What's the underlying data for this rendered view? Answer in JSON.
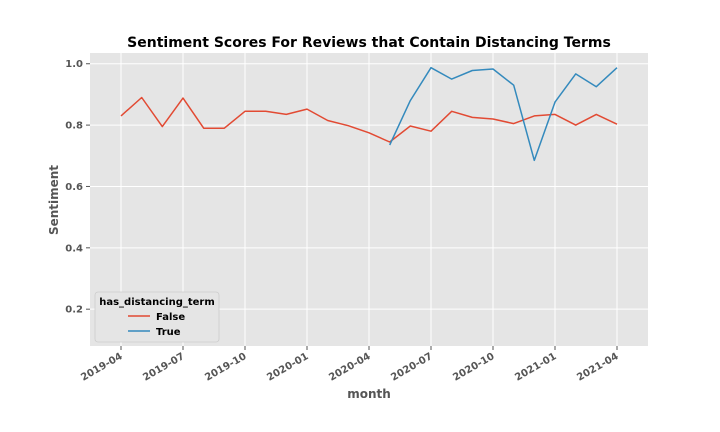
{
  "chart_data": {
    "type": "line",
    "title": "Sentiment Scores For Reviews that Contain Distancing Terms",
    "xlabel": "month",
    "ylabel": "Sentiment",
    "xlim": [
      "2019-04",
      "2021-04"
    ],
    "ylim": [
      0.08,
      1.035
    ],
    "x_ticks": [
      "2019-04",
      "2019-07",
      "2019-10",
      "2020-01",
      "2020-04",
      "2020-07",
      "2020-10",
      "2021-01",
      "2021-04"
    ],
    "y_ticks": [
      0.2,
      0.4,
      0.6,
      0.8,
      1.0
    ],
    "grid": true,
    "legend": {
      "title": "has_distancing_term",
      "placement": "lower-left"
    },
    "series": [
      {
        "name": "False",
        "color": "#E24A33",
        "x": [
          "2019-04",
          "2019-05",
          "2019-06",
          "2019-07",
          "2019-08",
          "2019-09",
          "2019-10",
          "2019-11",
          "2019-12",
          "2020-01",
          "2020-02",
          "2020-03",
          "2020-04",
          "2020-05",
          "2020-06",
          "2020-07",
          "2020-08",
          "2020-09",
          "2020-10",
          "2020-11",
          "2020-12",
          "2021-01",
          "2021-02",
          "2021-03",
          "2021-04"
        ],
        "values": [
          0.83,
          0.89,
          0.795,
          0.888,
          0.79,
          0.79,
          0.845,
          0.845,
          0.835,
          0.852,
          0.815,
          0.798,
          0.775,
          0.745,
          0.797,
          0.78,
          0.845,
          0.825,
          0.82,
          0.805,
          0.83,
          0.835,
          0.8,
          0.835,
          0.803
        ]
      },
      {
        "name": "True",
        "color": "#348ABD",
        "x": [
          "2020-05",
          "2020-06",
          "2020-07",
          "2020-08",
          "2020-09",
          "2020-10",
          "2020-11",
          "2020-12",
          "2021-01",
          "2021-02",
          "2021-03",
          "2021-04"
        ],
        "values": [
          0.735,
          0.88,
          0.987,
          0.95,
          0.978,
          0.983,
          0.93,
          0.685,
          0.875,
          0.967,
          0.925,
          0.987
        ]
      }
    ]
  }
}
